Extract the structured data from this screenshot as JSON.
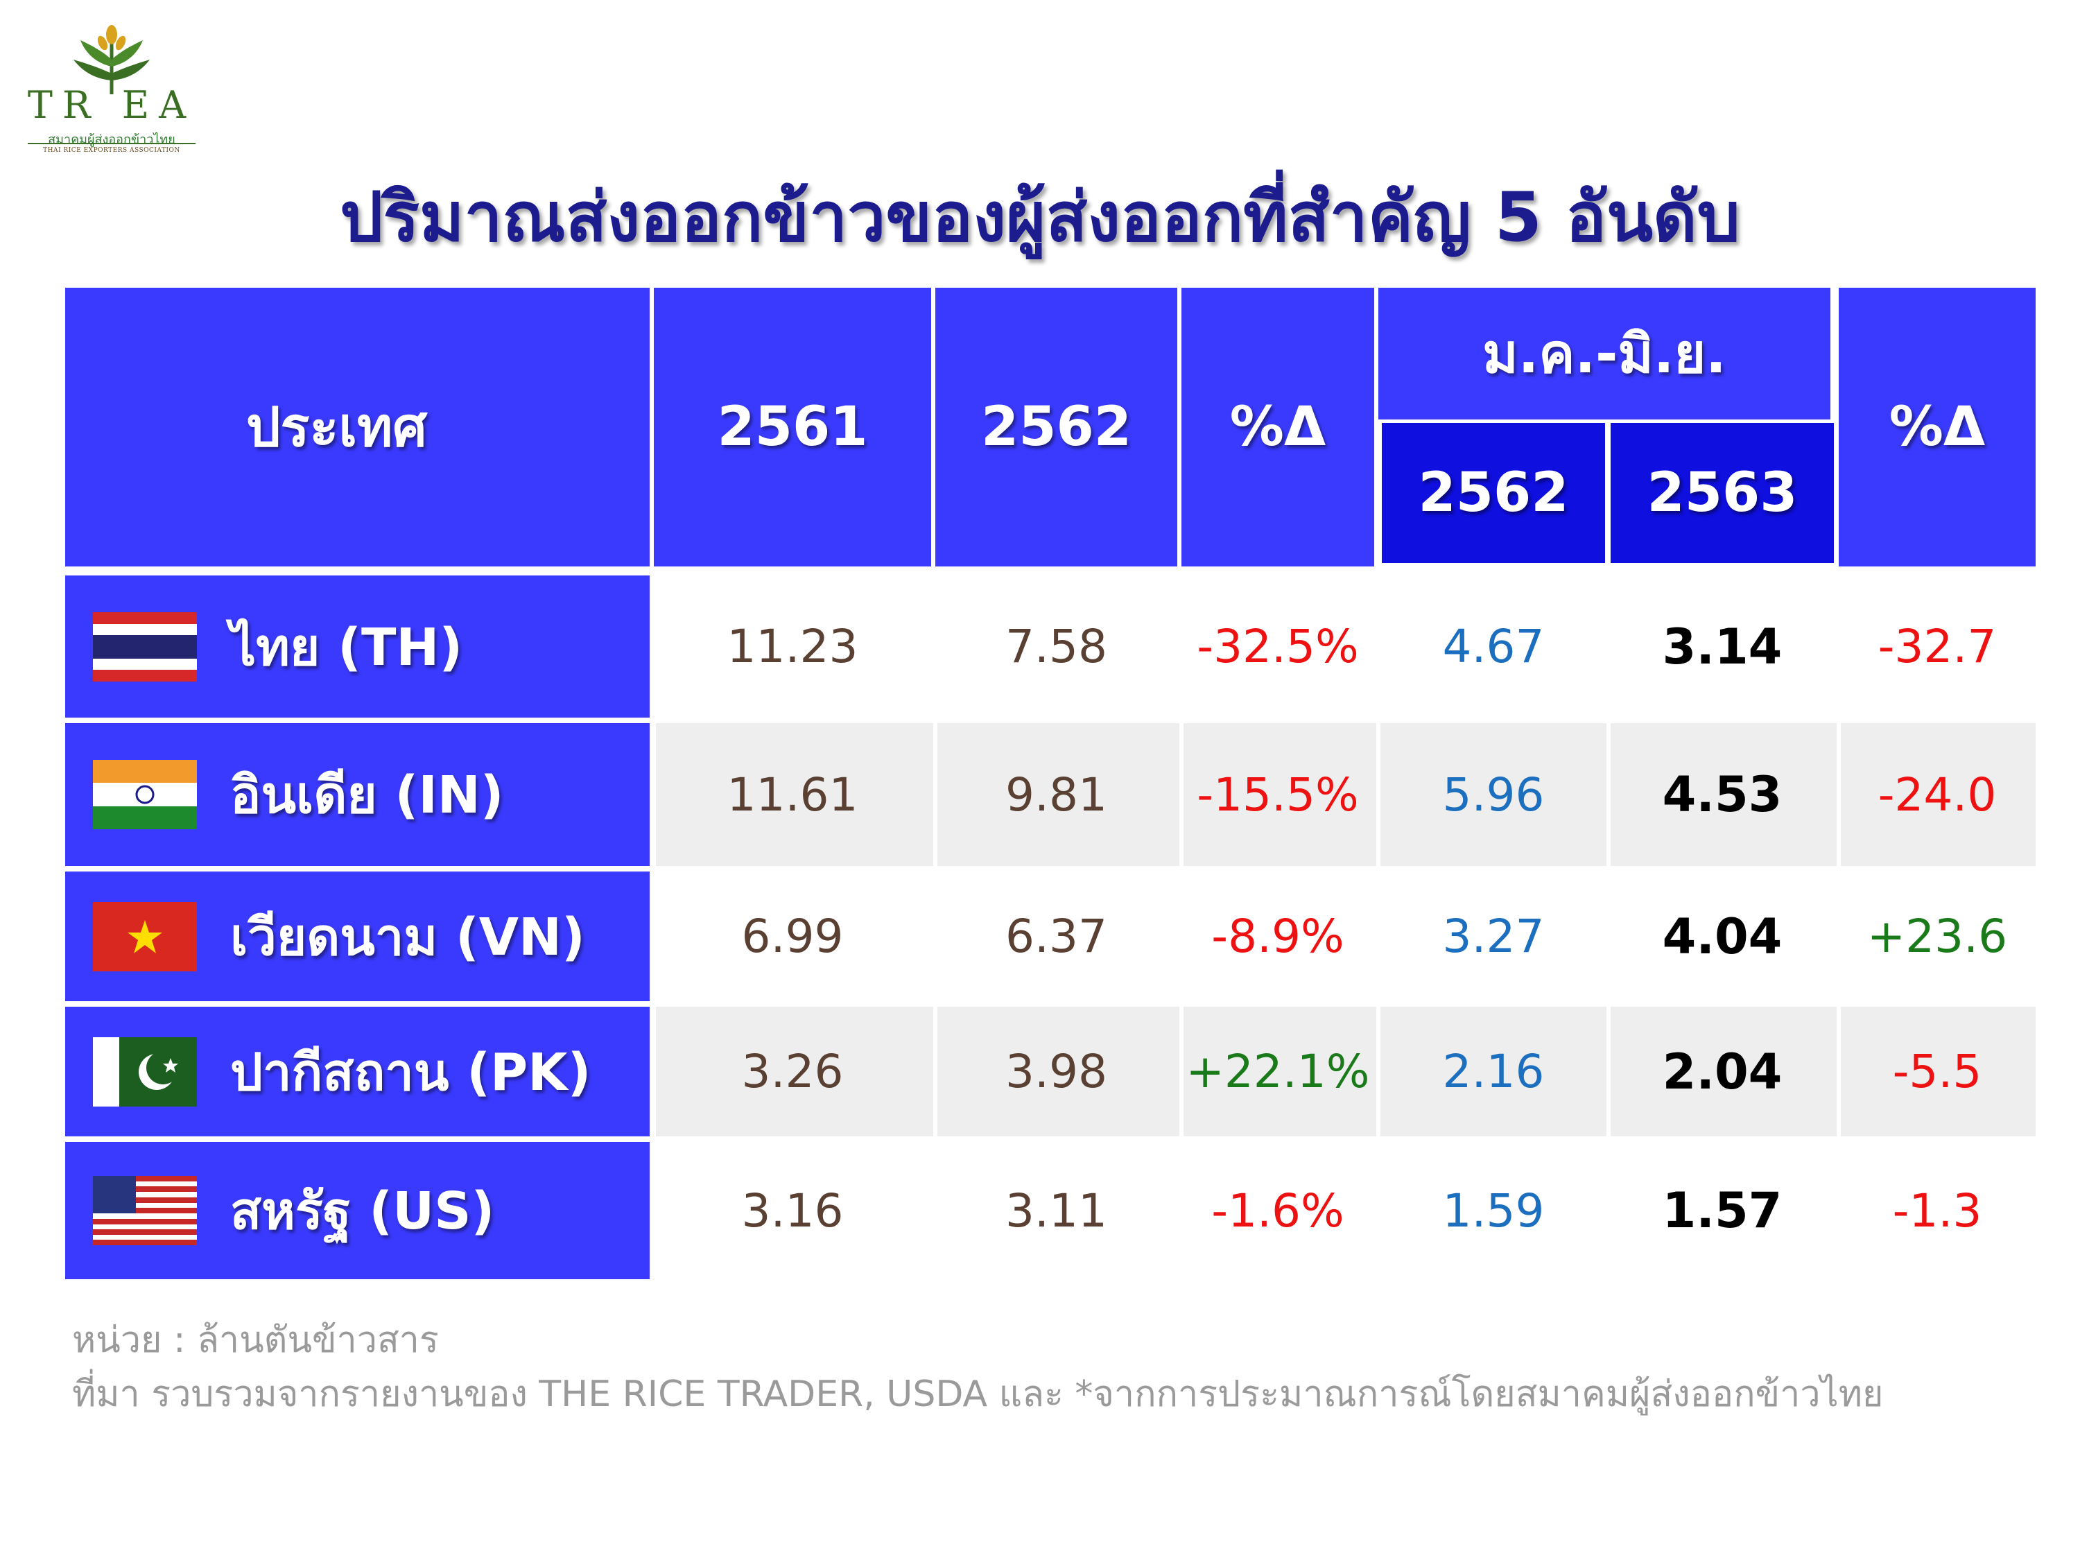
{
  "logo": {
    "word": "TR EA",
    "thai": "สมาคมผู้ส่งออกข้าวไทย",
    "english": "THAI RICE EXPORTERS ASSOCIATION"
  },
  "title": "ปริมาณส่งออกข้าวของผู้ส่งออกที่สำคัญ 5 อันดับ",
  "colors": {
    "header": "#3a3aff",
    "header_dark": "#0f0fdf",
    "negative": "#ee1111",
    "positive": "#1a7a1a",
    "blue": "#1c6fbf"
  },
  "headers": {
    "country": "ประเทศ",
    "y2561": "2561",
    "y2562": "2562",
    "pct1": "%Δ",
    "period": "ม.ค.-มิ.ย.",
    "p2562": "2562",
    "p2563": "2563",
    "pct2": "%Δ"
  },
  "chart_data": {
    "type": "table",
    "title": "ปริมาณส่งออกข้าวของผู้ส่งออกที่สำคัญ 5 อันดับ",
    "columns": [
      "ประเทศ",
      "2561",
      "2562",
      "%Δ",
      "ม.ค.-มิ.ย. 2562",
      "ม.ค.-มิ.ย. 2563",
      "%Δ"
    ],
    "rows": [
      {
        "country": "ไทย (TH)",
        "flag": "thailand-flag-icon",
        "y2561": "11.23",
        "y2562": "7.58",
        "pct1": "-32.5%",
        "p2562": "4.67",
        "p2563": "3.14",
        "pct2": "-32.7"
      },
      {
        "country": "อินเดีย (IN)",
        "flag": "india-flag-icon",
        "y2561": "11.61",
        "y2562": "9.81",
        "pct1": "-15.5%",
        "p2562": "5.96",
        "p2563": "4.53",
        "pct2": "-24.0"
      },
      {
        "country": "เวียดนาม (VN)",
        "flag": "vietnam-flag-icon",
        "y2561": "6.99",
        "y2562": "6.37",
        "pct1": "-8.9%",
        "p2562": "3.27",
        "p2563": "4.04",
        "pct2": "+23.6"
      },
      {
        "country": "ปากีสถาน (PK)",
        "flag": "pakistan-flag-icon",
        "y2561": "3.26",
        "y2562": "3.98",
        "pct1": "+22.1%",
        "p2562": "2.16",
        "p2563": "2.04",
        "pct2": "-5.5"
      },
      {
        "country": "สหรัฐ (US)",
        "flag": "usa-flag-icon",
        "y2561": "3.16",
        "y2562": "3.11",
        "pct1": "-1.6%",
        "p2562": "1.59",
        "p2563": "1.57",
        "pct2": "-1.3"
      }
    ]
  },
  "footnote": {
    "unit": "หน่วย : ล้านตันข้าวสาร",
    "source": "ที่มา รวบรวมจากรายงานของ THE RICE TRADER, USDA  และ *จากการประมาณการณ์โดยสมาคมผู้ส่งออกข้าวไทย"
  }
}
